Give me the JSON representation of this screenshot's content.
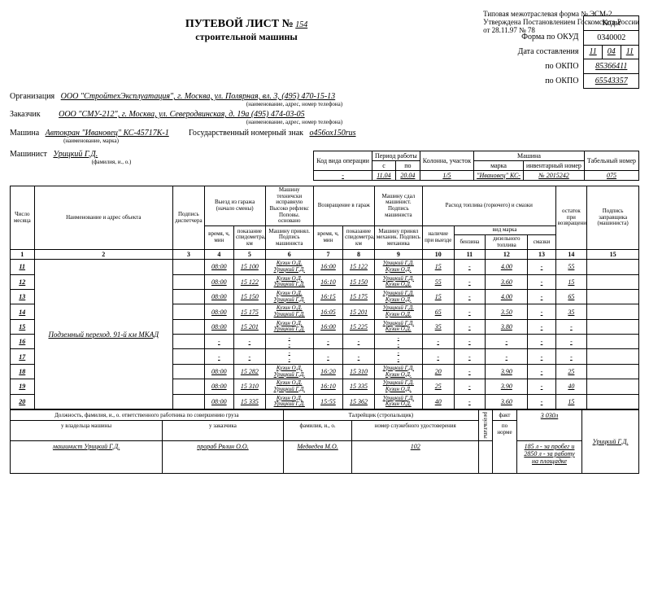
{
  "form_header": {
    "line1": "Типовая межотраслевая форма № ЭСМ-2",
    "line2": "Утверждена Постановлением Госкомстата России",
    "line3": "от 28.11.97 № 78"
  },
  "title": {
    "main": "ПУТЕВОЙ ЛИСТ №",
    "num": "154",
    "sub": "строительной машины"
  },
  "codes": {
    "labels": [
      "Коды",
      "Форма по ОКУД",
      "Дата составления",
      "по ОКПО",
      "по ОКПО"
    ],
    "okud": "0340002",
    "date": {
      "d": "11",
      "m": "04",
      "y": "11"
    },
    "okpo1": "85366411",
    "okpo2": "65543357"
  },
  "org": {
    "label": "Организация",
    "value": "ООО \"СтройтехЭксплуатация\", г. Москва, ул. Полярная, вл. 3, (495) 470-15-13",
    "sub": "(наименование, адрес, номер телефона)"
  },
  "cust": {
    "label": "Заказчик",
    "value": "ООО \"СМУ-212\", г. Москва, ул. Северодвинская, д. 19а (495) 474-03-05",
    "sub": "(наименование, адрес, номер телефона)"
  },
  "machine": {
    "label": "Машина",
    "value": "Автокран \"Ивановец\" КС-45717К-1",
    "sub": "(наименование, марка)",
    "plate_label": "Государственный номерный знак",
    "plate": "о456ох150rus"
  },
  "driver": {
    "label": "Машинист",
    "value": "Урицкий Г.Д.",
    "sub": "(фамилия, и., о.)"
  },
  "summary": {
    "h1": "Код вида операции",
    "h2": "Период работы",
    "h2a": "с",
    "h2b": "по",
    "h3": "Колонна, участок",
    "h4": "Машина",
    "h4a": "марка",
    "h4b": "инвентарный номер",
    "h5": "Табельный номер",
    "r": {
      "op": "-",
      "from": "11.04",
      "to": "20.04",
      "sect": "1/5",
      "brand": "\"Ивановец\" КС-",
      "inv": "№ 2015242",
      "tab": "075"
    }
  },
  "mh": {
    "c1": "Число месяца",
    "c2": "Наименование и адрес объекта",
    "c3": "Подпись диспетчера",
    "c4": "Выезд из гаража (начало смены)",
    "c4a": "время, ч, мин",
    "c4b": "показание спидометра, км",
    "c5": "Машину техничски исправную Высоко рефлекс Поповы. основано",
    "c5b": "Машину принял. Подпись машиниста",
    "c6": "Возвращение в гараж",
    "c6a": "время, ч, мин",
    "c6b": "показание спидометра, км",
    "c7": "Машину сдал машинист. Подпись машиниста",
    "c7b": "Машину принял механик. Подпись механика",
    "c8": "Расход топлива (горючего) и смазки",
    "c8a": "наличие при выезде",
    "c8b": "вид марка",
    "c8c": "бензина",
    "c8d": "дизельного топлива",
    "c8e": "смазки",
    "c9": "остаток при возвращении",
    "c10": "Подпись заправщика (машиниста)"
  },
  "colnums": [
    "1",
    "2",
    "3",
    "4",
    "5",
    "6",
    "7",
    "8",
    "9",
    "10",
    "11",
    "12",
    "13",
    "14",
    "15"
  ],
  "rows": [
    {
      "n": "11",
      "out_t": "08:00",
      "out_km": "15 100",
      "a": "Кузин О.Д.",
      "b": "Урицкий Г.Д.",
      "in_t": "16:00",
      "in_km": "15 122",
      "c": "Урицкий Г.Д.",
      "d": "Кузин О.Д.",
      "f1": "15",
      "f2": "-",
      "f3": "4.00",
      "f4": "-",
      "f5": "55",
      "sig": ""
    },
    {
      "n": "12",
      "out_t": "08:00",
      "out_km": "15 122",
      "a": "Кузин О.Д.",
      "b": "Урицкий Г.Д.",
      "in_t": "16:10",
      "in_km": "15 150",
      "c": "Урицкий Г.Д.",
      "d": "Кузин О.Д.",
      "f1": "55",
      "f2": "-",
      "f3": "3.60",
      "f4": "-",
      "f5": "15",
      "sig": ""
    },
    {
      "n": "13",
      "out_t": "08:00",
      "out_km": "15 150",
      "a": "Кузин О.Д.",
      "b": "Урицкий Г.Д.",
      "in_t": "16:15",
      "in_km": "15 175",
      "c": "Урицкий Г.Д.",
      "d": "Кузин О.Д.",
      "f1": "15",
      "f2": "-",
      "f3": "4.00",
      "f4": "-",
      "f5": "65",
      "sig": ""
    },
    {
      "n": "14",
      "out_t": "08:00",
      "out_km": "15 175",
      "a": "Кузин О.Д.",
      "b": "Урицкий Г.Д.",
      "in_t": "16:05",
      "in_km": "15 201",
      "c": "Урицкий Г.Д.",
      "d": "Кузин О.Д.",
      "f1": "65",
      "f2": "-",
      "f3": "3.50",
      "f4": "-",
      "f5": "35",
      "sig": ""
    },
    {
      "n": "15",
      "out_t": "08:00",
      "out_km": "15 201",
      "a": "Кузин О.Д.",
      "b": "Урицкий Г.Д.",
      "in_t": "16:00",
      "in_km": "15 225",
      "c": "Урицкий Г.Д.",
      "d": "Кузин О.Д.",
      "f1": "35",
      "f2": "-",
      "f3": "3.80",
      "f4": "-",
      "f5": "-",
      "sig": ""
    },
    {
      "n": "16",
      "out_t": "-",
      "out_km": "-",
      "a": "-",
      "b": "-",
      "in_t": "-",
      "in_km": "-",
      "c": "-",
      "d": "-",
      "f1": "-",
      "f2": "-",
      "f3": "-",
      "f4": "-",
      "f5": "-",
      "sig": ""
    },
    {
      "n": "17",
      "out_t": "-",
      "out_km": "-",
      "a": "-",
      "b": "-",
      "in_t": "-",
      "in_km": "-",
      "c": "-",
      "d": "-",
      "f1": "-",
      "f2": "-",
      "f3": "-",
      "f4": "-",
      "f5": "-",
      "sig": ""
    },
    {
      "n": "18",
      "out_t": "08:00",
      "out_km": "15 282",
      "a": "Кузин О.Д.",
      "b": "Урицкий Г.Д.",
      "in_t": "16:20",
      "in_km": "15 310",
      "c": "Урицкий Г.Д.",
      "d": "Кузин О.Д.",
      "f1": "20",
      "f2": "-",
      "f3": "3.90",
      "f4": "-",
      "f5": "25",
      "sig": ""
    },
    {
      "n": "19",
      "out_t": "08:00",
      "out_km": "15 310",
      "a": "Кузин О.Д.",
      "b": "Урицкий Г.Д.",
      "in_t": "16:10",
      "in_km": "15 335",
      "c": "Урицкий Г.Д.",
      "d": "Кузин О.Д.",
      "f1": "25",
      "f2": "-",
      "f3": "3.90",
      "f4": "-",
      "f5": "40",
      "sig": ""
    },
    {
      "n": "20",
      "out_t": "08:00",
      "out_km": "15 335",
      "a": "Кузин О.Д.",
      "b": "Урицкий Г.Д.",
      "in_t": "15:55",
      "in_km": "15 362",
      "c": "Урицкий Г.Д.",
      "d": "Кузин О.Д.",
      "f1": "40",
      "f2": "-",
      "f3": "3.60",
      "f4": "-",
      "f5": "15",
      "sig": ""
    }
  ],
  "object": "Подземный переход. 91-й км МКАД",
  "foot": {
    "h1": "Должность, фамилия, и., о. ответственного работника по совершению груза",
    "h2": "Талрейщик (стропальщик)",
    "own_h": "у владельца машины",
    "cust_h": "у заказчика",
    "fio_h": "фамилия, и., о.",
    "cert_h": "номер служебного удостоверения",
    "own": "машинист Урицкий Г.Д.",
    "cust": "прораб Рялин О.О.",
    "fio": "Медведев М.О.",
    "cert": "102",
    "res_h1": "результаты",
    "res1_lbl": "факт",
    "res1": "3 030л",
    "res2_lbl": "по норме",
    "res2": "185 л - за пробег и 2850 л - за работу на площадке",
    "sig": "Урицкий Г.Д."
  }
}
